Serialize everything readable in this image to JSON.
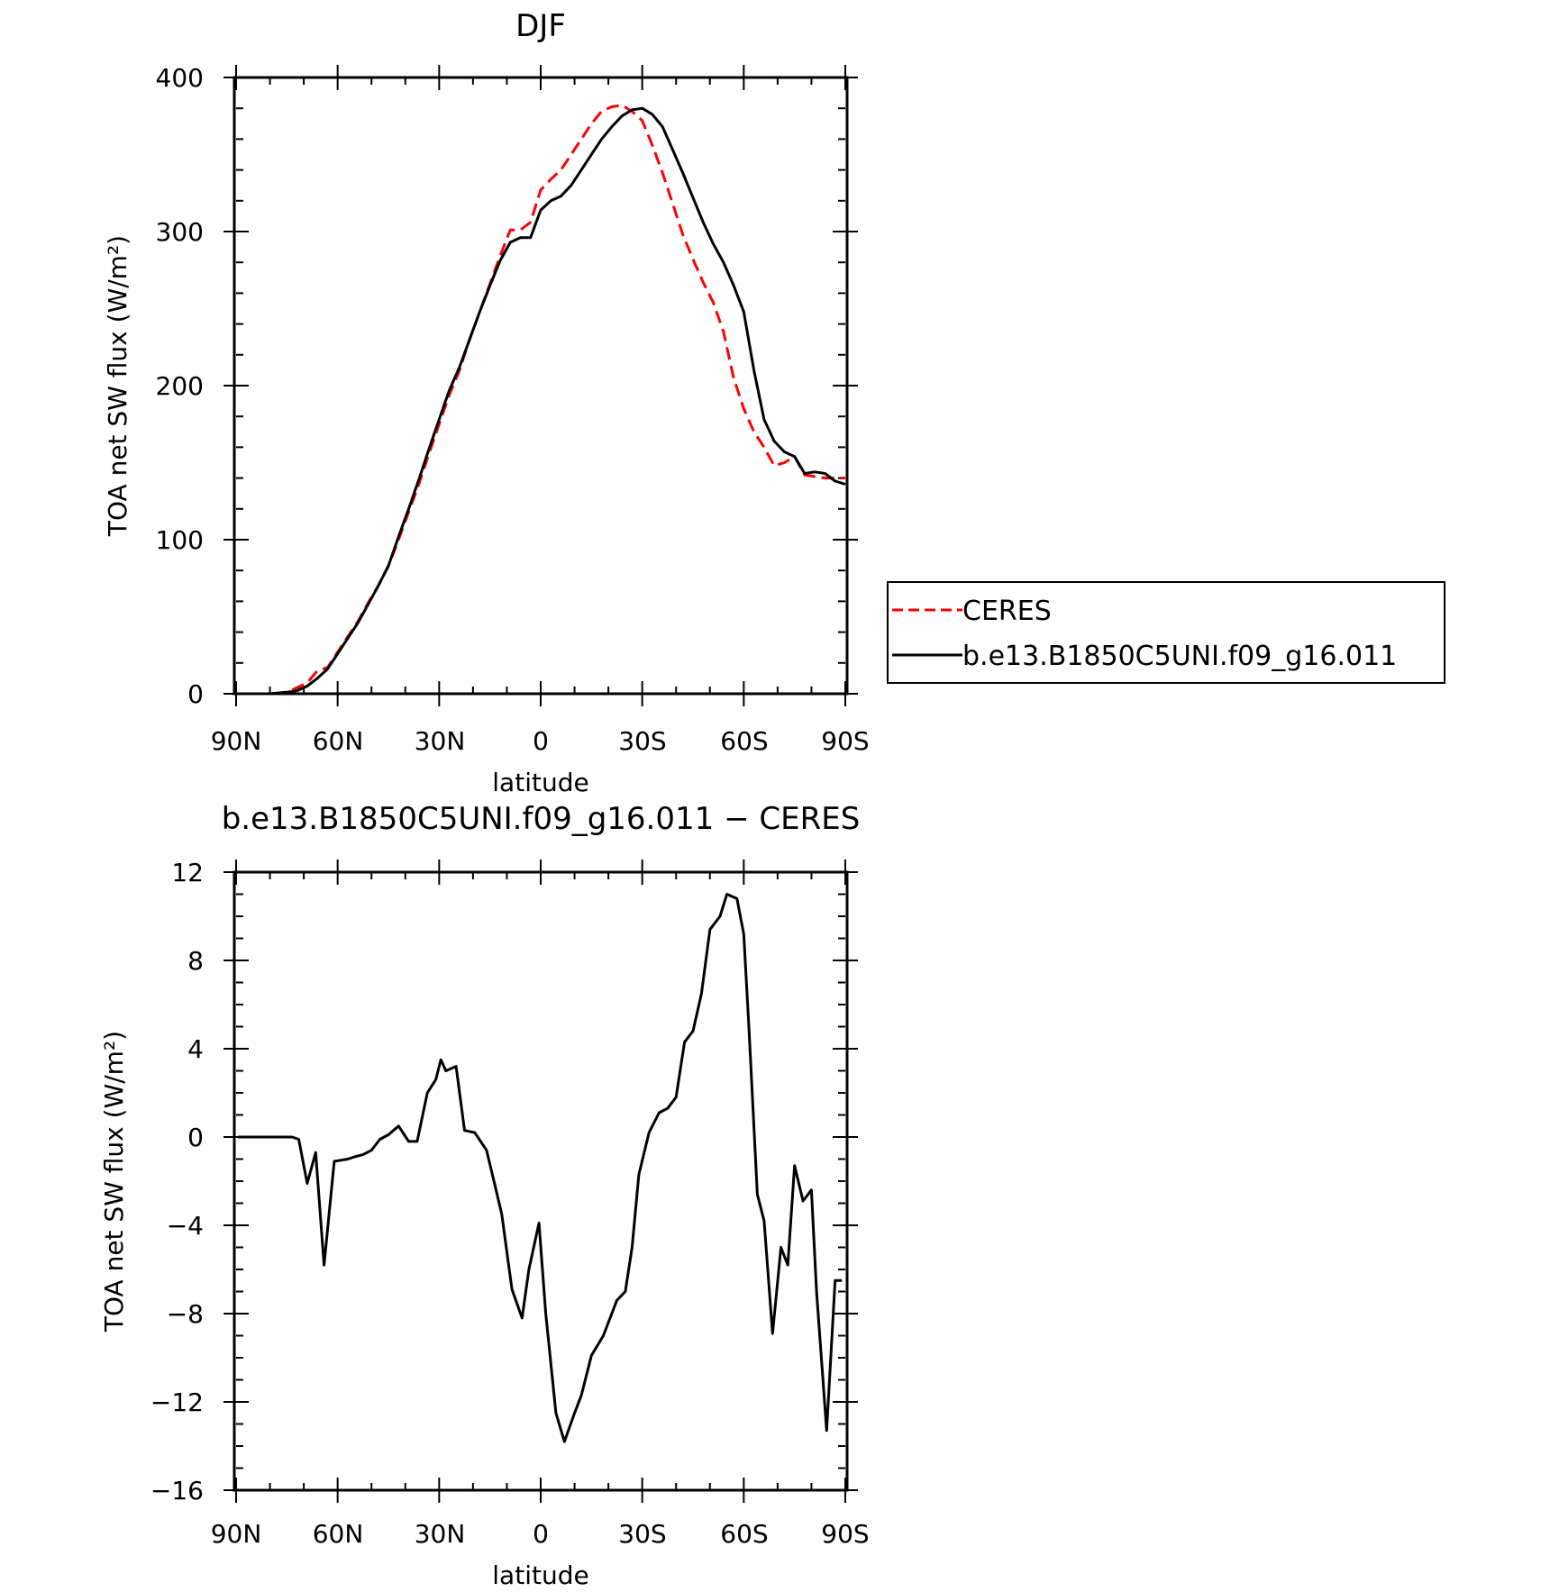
{
  "chart_data": [
    {
      "type": "line",
      "title": "DJF",
      "xlabel": "latitude",
      "ylabel": "TOA net SW flux (W/m²)",
      "xticks": [
        "90N",
        "60N",
        "30N",
        "0",
        "30S",
        "60S",
        "90S"
      ],
      "yticks": [
        "0",
        "100",
        "200",
        "300",
        "400"
      ],
      "xlim": [
        90,
        -90
      ],
      "ylim": [
        0,
        400
      ],
      "legend": "right",
      "series": [
        {
          "name": "CERES",
          "color": "#ff0000",
          "dash": "dashed",
          "x": [
            90,
            85,
            80,
            75,
            72,
            69,
            66,
            63,
            60,
            57,
            54,
            51,
            48,
            45,
            42,
            39,
            36,
            33,
            30,
            27,
            24,
            21,
            18,
            15,
            12,
            9,
            6,
            3,
            0,
            -3,
            -6,
            -9,
            -12,
            -15,
            -18,
            -21,
            -24,
            -27,
            -30,
            -33,
            -36,
            -39,
            -42,
            -45,
            -48,
            -51,
            -54,
            -57,
            -60,
            -63,
            -66,
            -69,
            -72,
            -75,
            -78,
            -81,
            -84,
            -87,
            -90
          ],
          "values": [
            0,
            0,
            0,
            1,
            4,
            7,
            15,
            17,
            27,
            37,
            47,
            59,
            70,
            83,
            100,
            118,
            136,
            156,
            175,
            194,
            210,
            230,
            248,
            266,
            284,
            301,
            301,
            306,
            327,
            334,
            340,
            350,
            360,
            370,
            378,
            381,
            382,
            378,
            372,
            356,
            338,
            318,
            298,
            282,
            267,
            254,
            235,
            205,
            185,
            170,
            160,
            148,
            150,
            154,
            142,
            141,
            140,
            140,
            140
          ]
        },
        {
          "name": "b.e13.B1850C5UNI.f09_g16.011",
          "color": "#000000",
          "dash": "solid",
          "x": [
            90,
            85,
            80,
            75,
            72,
            69,
            66,
            63,
            60,
            57,
            54,
            51,
            48,
            45,
            42,
            39,
            36,
            33,
            30,
            27,
            24,
            21,
            18,
            15,
            12,
            9,
            6,
            3,
            0,
            -3,
            -6,
            -9,
            -12,
            -15,
            -18,
            -21,
            -24,
            -27,
            -30,
            -33,
            -36,
            -39,
            -42,
            -45,
            -48,
            -51,
            -54,
            -57,
            -60,
            -63,
            -66,
            -69,
            -72,
            -75,
            -78,
            -81,
            -84,
            -87,
            -90
          ],
          "values": [
            0,
            0,
            0,
            1,
            2,
            5,
            10,
            16,
            26,
            36,
            46,
            58,
            70,
            83,
            102,
            120,
            139,
            159,
            178,
            197,
            212,
            230,
            248,
            265,
            281,
            293,
            296,
            296,
            314,
            320,
            323,
            330,
            340,
            350,
            360,
            368,
            375,
            379,
            380,
            376,
            368,
            353,
            338,
            322,
            306,
            292,
            280,
            265,
            248,
            210,
            178,
            164,
            157,
            154,
            143,
            144,
            143,
            138,
            136
          ]
        }
      ]
    },
    {
      "type": "line",
      "title": "b.e13.B1850C5UNI.f09_g16.011 − CERES",
      "xlabel": "latitude",
      "ylabel": "TOA net SW flux (W/m²)",
      "xticks": [
        "90N",
        "60N",
        "30N",
        "0",
        "30S",
        "60S",
        "90S"
      ],
      "yticks": [
        "−16",
        "−12",
        "−8",
        "−4",
        "0",
        "4",
        "8",
        "12"
      ],
      "xlim": [
        90,
        -90
      ],
      "ylim": [
        -16,
        12
      ],
      "series": [
        {
          "color": "#000000",
          "dash": "solid",
          "x": [
            89.5,
            80,
            76,
            73.5,
            71.5,
            69,
            66.5,
            64,
            61,
            57,
            55,
            52.5,
            50,
            47.5,
            45,
            42,
            39,
            36.5,
            33.5,
            31,
            29.5,
            28,
            25,
            22.5,
            19.5,
            16,
            13.5,
            11.5,
            8.5,
            5.5,
            3.5,
            0.5,
            -1.5,
            -4.5,
            -7,
            -10,
            -12,
            -15,
            -18.5,
            -21,
            -22.5,
            -25,
            -27,
            -29,
            -32,
            -35,
            -37.5,
            -40,
            -42.5,
            -45,
            -47.5,
            -50,
            -53,
            -55,
            -58,
            -60,
            -61.5,
            -64,
            -66,
            -68.5,
            -71,
            -73,
            -75,
            -77.5,
            -80,
            -81.5,
            -84.5,
            -87,
            -89
          ],
          "values": [
            0,
            0,
            0,
            0,
            -0.1,
            -2.1,
            -0.7,
            -5.8,
            -1.1,
            -1.0,
            -0.9,
            -0.8,
            -0.6,
            -0.1,
            0.1,
            0.5,
            -0.2,
            -0.2,
            2.0,
            2.6,
            3.5,
            3.0,
            3.2,
            0.3,
            0.2,
            -0.6,
            -2.2,
            -3.5,
            -6.9,
            -8.2,
            -6.0,
            -3.9,
            -8.0,
            -12.5,
            -13.8,
            -12.5,
            -11.7,
            -9.9,
            -9.0,
            -8.0,
            -7.4,
            -7.0,
            -5.0,
            -1.7,
            0.2,
            1.1,
            1.3,
            1.8,
            4.3,
            4.8,
            6.5,
            9.4,
            10.0,
            11.0,
            10.8,
            9.2,
            5.0,
            -2.6,
            -3.8,
            -8.9,
            -5.0,
            -5.8,
            -1.3,
            -2.9,
            -2.4,
            -7.0,
            -13.3,
            -6.5,
            -6.5
          ]
        }
      ]
    }
  ]
}
